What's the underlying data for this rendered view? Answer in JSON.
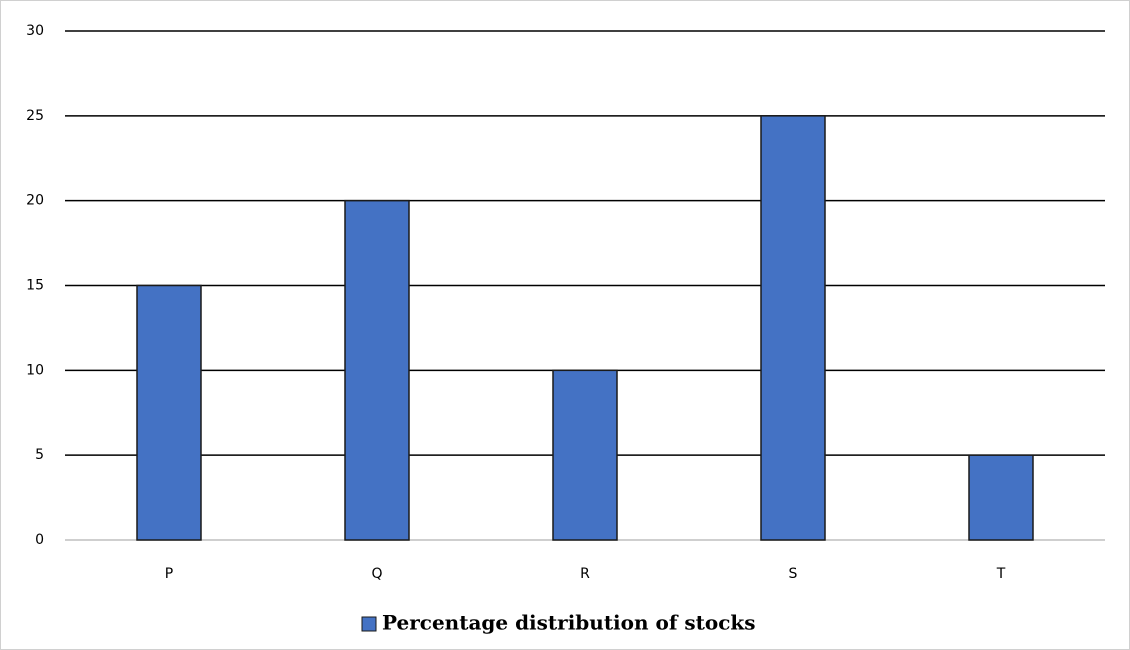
{
  "chart_data": {
    "type": "bar",
    "categories": [
      "P",
      "Q",
      "R",
      "S",
      "T"
    ],
    "series": [
      {
        "name": "Percentage distribution of stocks",
        "color": "#4472c4",
        "values": [
          15,
          20,
          10,
          25,
          5
        ]
      }
    ],
    "ylim": [
      0,
      30
    ],
    "yticks": [
      0,
      5,
      10,
      15,
      20,
      25,
      30
    ],
    "grid": true,
    "legend": "bottom"
  }
}
